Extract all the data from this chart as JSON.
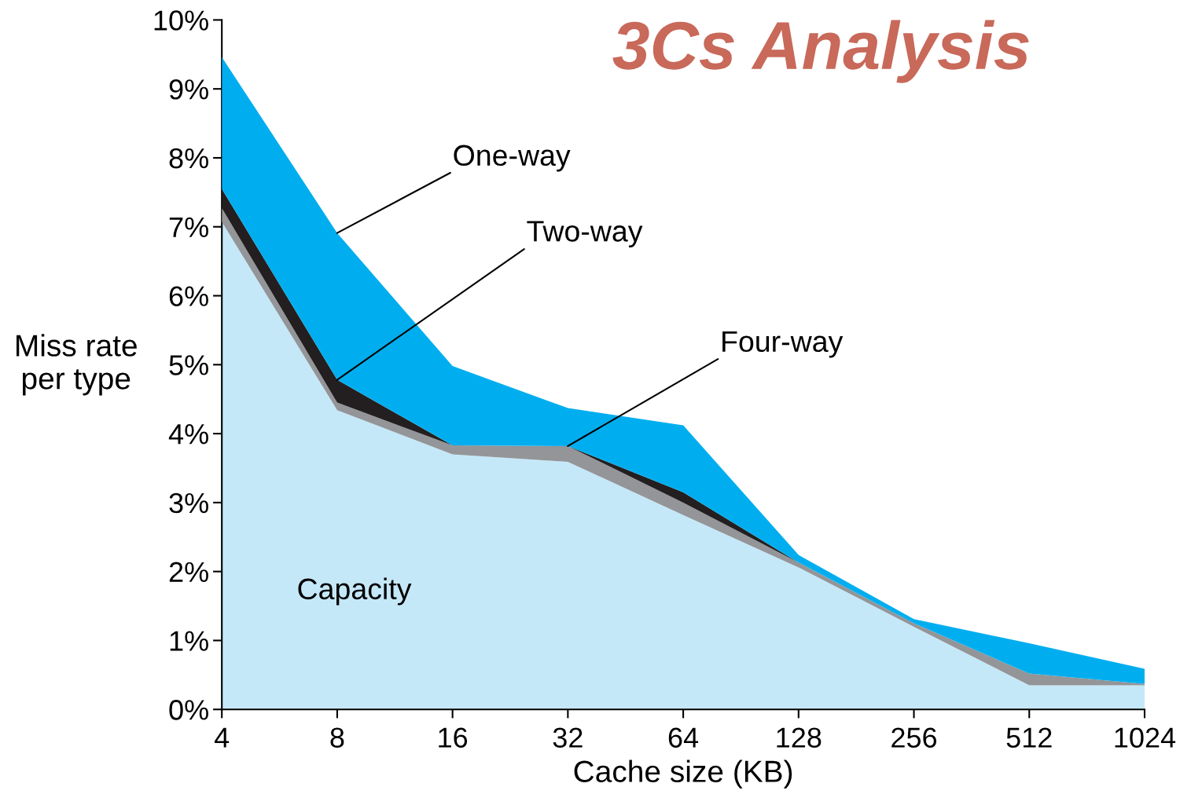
{
  "chart_data": {
    "type": "area",
    "stacked": true,
    "title": "3Cs Analysis",
    "xlabel": "Cache size (KB)",
    "ylabel": "Miss rate\nper type",
    "categories": [
      "4",
      "8",
      "16",
      "32",
      "64",
      "128",
      "256",
      "512",
      "1024"
    ],
    "series": [
      {
        "name": "Capacity",
        "color": "#c5e8f8",
        "values": [
          7.07,
          4.34,
          3.7,
          3.59,
          2.82,
          2.06,
          1.2,
          0.35,
          0.35
        ]
      },
      {
        "color": "#939598",
        "values": [
          0.2,
          0.11,
          0.13,
          0.23,
          0.18,
          0.07,
          0.05,
          0.17,
          0.02
        ]
      },
      {
        "color": "#231f20",
        "values": [
          0.28,
          0.33,
          0,
          0,
          0.15,
          0,
          0,
          0,
          0
        ]
      },
      {
        "color": "#00aeef",
        "values": [
          1.91,
          2.13,
          1.15,
          0.55,
          0.97,
          0.11,
          0.06,
          0.44,
          0.22
        ]
      }
    ],
    "annotations": [
      {
        "text": "One-way",
        "x": "8",
        "y": 6.91
      },
      {
        "text": "Two-way",
        "x": "8",
        "y": 4.78
      },
      {
        "text": "Four-way",
        "x": "32",
        "y": 3.82
      }
    ],
    "ylim": [
      0,
      10
    ],
    "yticks": [
      {
        "value": 0,
        "label": "0%"
      },
      {
        "value": 1,
        "label": "1%"
      },
      {
        "value": 2,
        "label": "2%"
      },
      {
        "value": 3,
        "label": "3%"
      },
      {
        "value": 4,
        "label": "4%"
      },
      {
        "value": 5,
        "label": "5%"
      },
      {
        "value": 6,
        "label": "6%"
      },
      {
        "value": 7,
        "label": "7%"
      },
      {
        "value": 8,
        "label": "8%"
      },
      {
        "value": 9,
        "label": "9%"
      },
      {
        "value": 10,
        "label": "10%"
      }
    ],
    "grid": false,
    "legend": false
  }
}
